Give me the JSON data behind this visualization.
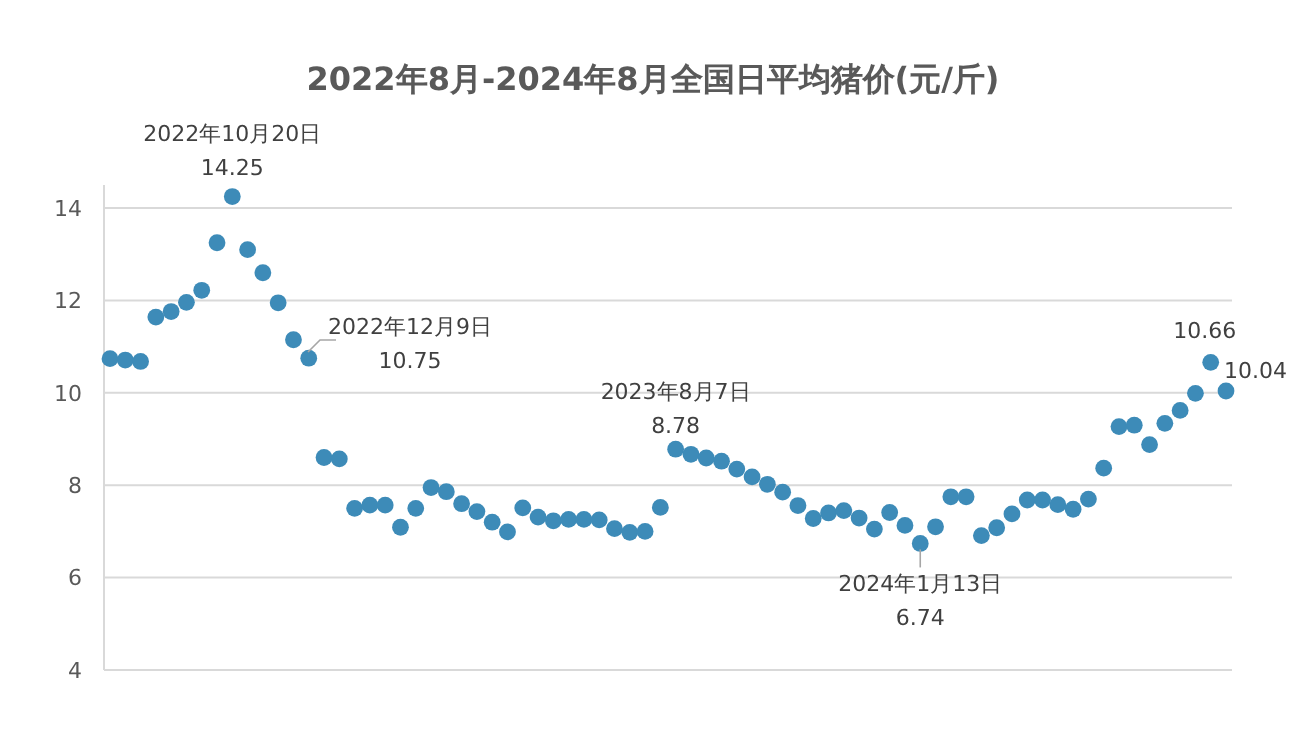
{
  "chart_data": {
    "type": "scatter",
    "title": "2022年8月-2024年8月全国日平均猪价(元/斤)",
    "marker": "circle",
    "grid": "y",
    "tick_labels": "y",
    "ylim": [
      4,
      14.5
    ],
    "yticks": [
      4,
      6,
      8,
      10,
      12,
      14
    ],
    "categories": [
      null,
      null,
      null,
      null,
      null,
      null,
      null,
      null,
      null,
      null,
      null,
      null,
      null,
      null,
      null,
      null,
      null,
      null,
      null,
      null,
      null,
      null,
      null,
      null,
      null,
      null,
      null,
      null,
      null,
      null,
      null,
      null,
      null,
      null,
      null,
      null,
      null,
      null,
      null,
      null,
      null,
      null,
      null,
      null,
      null,
      null,
      null,
      null,
      null,
      null,
      null,
      null,
      null,
      null,
      null,
      null,
      null,
      null,
      null,
      null,
      null,
      null,
      null,
      null,
      null,
      null,
      null,
      null,
      null,
      null,
      null,
      null,
      null,
      null
    ],
    "series": [
      {
        "color": "#3d8bb8",
        "values": [
          10.74,
          10.71,
          10.68,
          11.64,
          11.76,
          11.96,
          12.22,
          13.25,
          14.25,
          13.1,
          12.6,
          11.95,
          11.15,
          10.75,
          8.6,
          8.57,
          7.5,
          7.57,
          7.57,
          7.09,
          7.5,
          7.95,
          7.86,
          7.6,
          7.43,
          7.2,
          6.99,
          7.51,
          7.31,
          7.23,
          7.26,
          7.26,
          7.25,
          7.06,
          6.98,
          7.0,
          7.52,
          8.78,
          8.67,
          8.59,
          8.52,
          8.35,
          8.18,
          8.02,
          7.85,
          7.56,
          7.28,
          7.4,
          7.45,
          7.29,
          7.05,
          7.41,
          7.13,
          6.74,
          7.1,
          7.75,
          7.75,
          6.91,
          7.08,
          7.38,
          7.68,
          7.68,
          7.58,
          7.48,
          7.7,
          8.37,
          9.27,
          9.3,
          8.88,
          9.34,
          9.62,
          9.99,
          10.66,
          10.04
        ]
      }
    ],
    "annotations": [
      {
        "text": "2022年10月20日\n14.25",
        "y": 14.25
      },
      "2022年12月9日\n10.75",
      {
        "text": "2023年8月7日\n8.78",
        "y": 8.78
      },
      {
        "text": "2024年1月13日\n6.74",
        "y": 6.74
      },
      {
        "text": "10.66",
        "y": 10.66
      },
      "10.04"
    ]
  }
}
